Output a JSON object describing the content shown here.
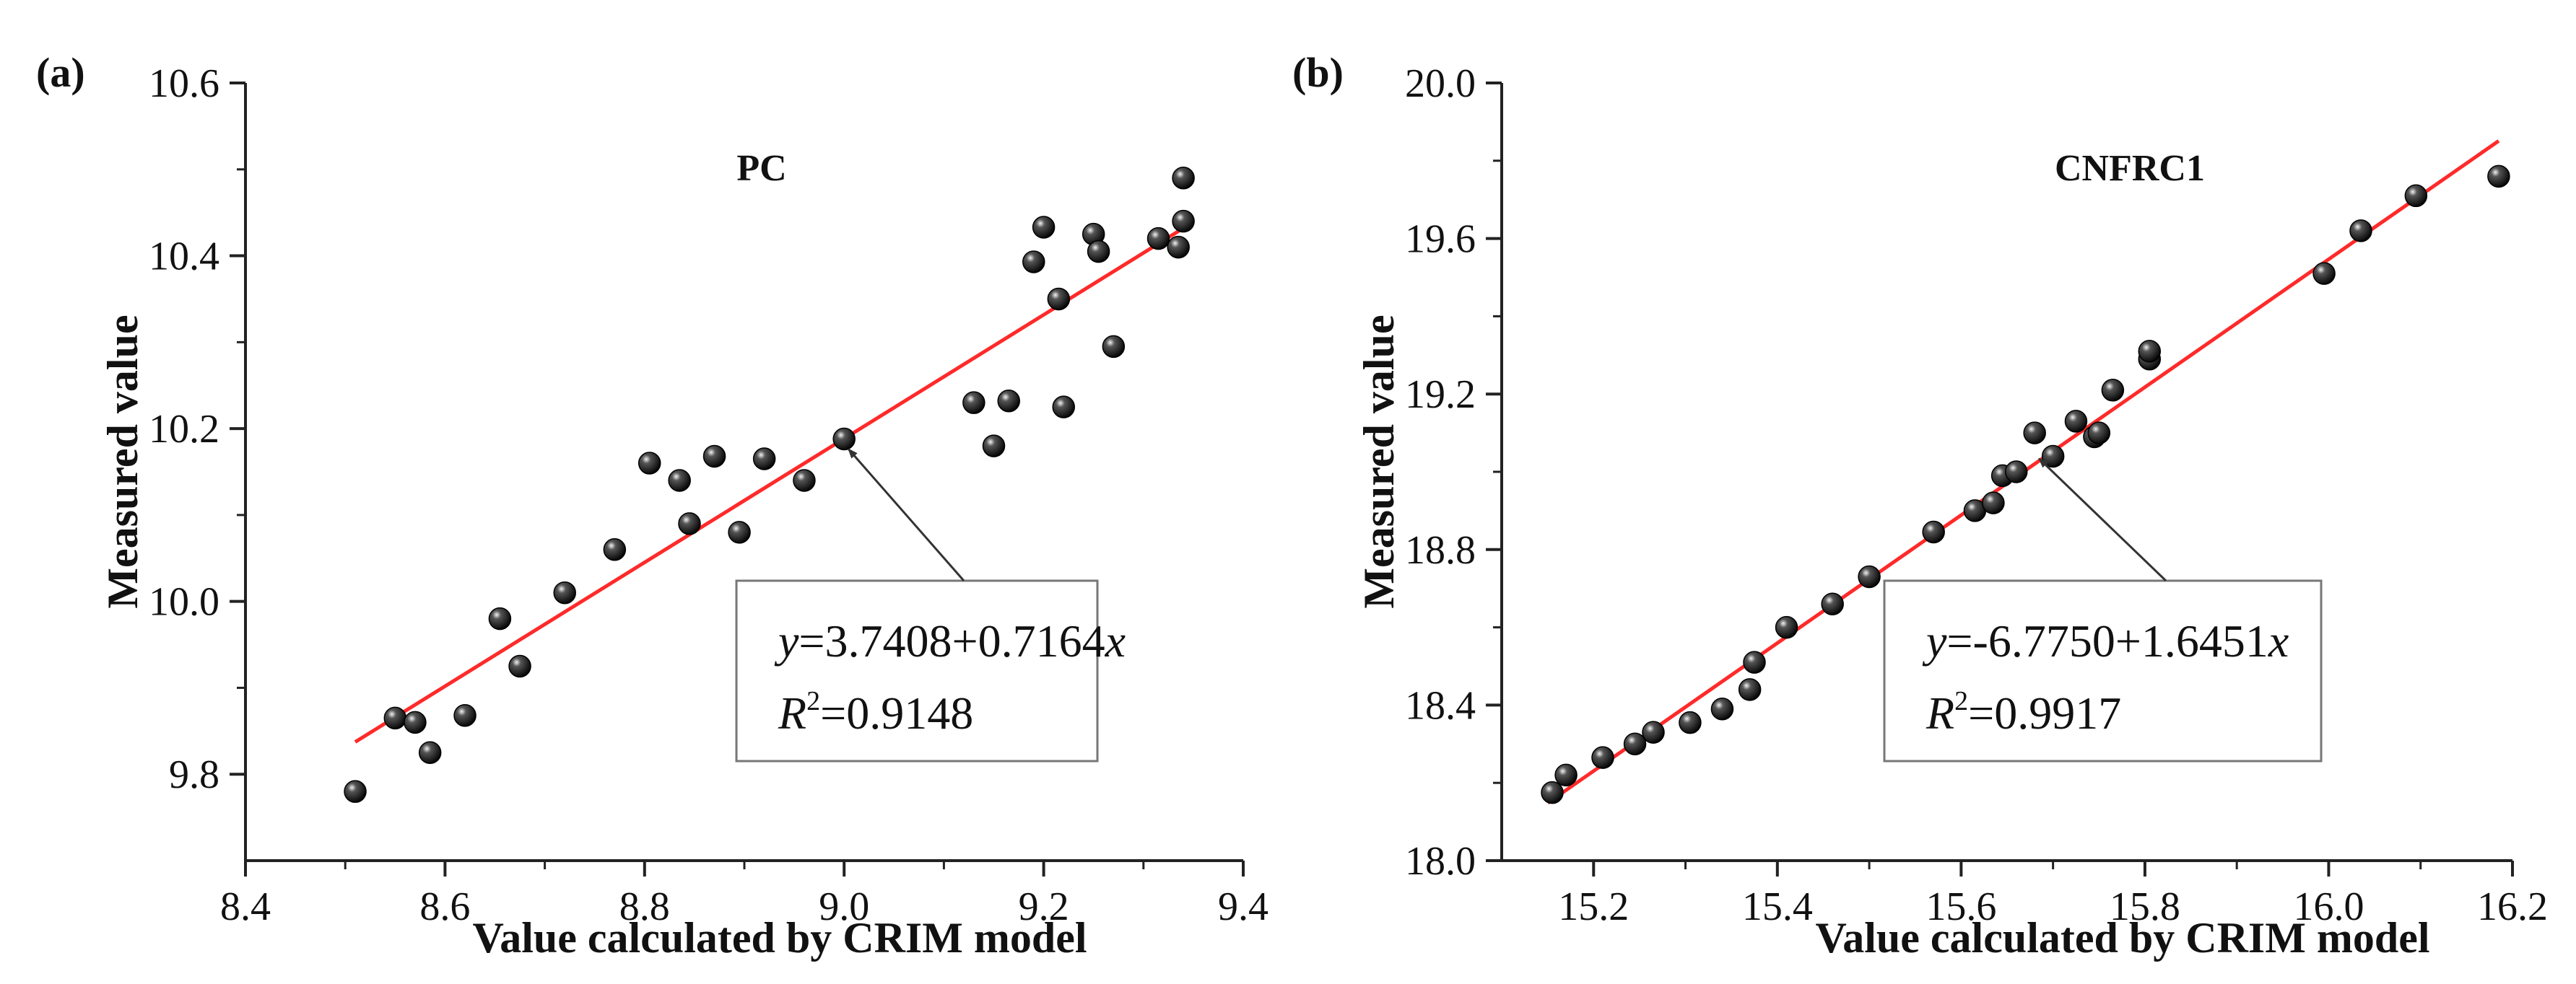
{
  "figure": {
    "panels": [
      "(a)",
      "(b)"
    ]
  },
  "chart_data": [
    {
      "type": "scatter",
      "panel_label": "(a)",
      "title": "PC",
      "xlabel": "Value calculated by CRIM model",
      "ylabel": "Measured value",
      "xlim": [
        8.4,
        9.4
      ],
      "ylim": [
        9.7,
        10.6
      ],
      "xticks": [
        "8.4",
        "8.6",
        "8.8",
        "9.0",
        "9.2",
        "9.4"
      ],
      "yticks": [
        "9.8",
        "10.0",
        "10.2",
        "10.4",
        "10.6"
      ],
      "colors": {
        "points": "#111111",
        "fit": "#ff2a2a",
        "axis": "#222222",
        "arrow": "#333333"
      },
      "points": [
        [
          8.51,
          9.78
        ],
        [
          8.55,
          9.865
        ],
        [
          8.57,
          9.86
        ],
        [
          8.585,
          9.825
        ],
        [
          8.62,
          9.868
        ],
        [
          8.655,
          9.98
        ],
        [
          8.675,
          9.925
        ],
        [
          8.72,
          10.01
        ],
        [
          8.77,
          10.06
        ],
        [
          8.805,
          10.16
        ],
        [
          8.835,
          10.14
        ],
        [
          8.845,
          10.09
        ],
        [
          8.87,
          10.168
        ],
        [
          8.895,
          10.08
        ],
        [
          8.92,
          10.165
        ],
        [
          8.96,
          10.14
        ],
        [
          9.0,
          10.188
        ],
        [
          9.13,
          10.23
        ],
        [
          9.15,
          10.18
        ],
        [
          9.165,
          10.232
        ],
        [
          9.19,
          10.393
        ],
        [
          9.2,
          10.433
        ],
        [
          9.215,
          10.35
        ],
        [
          9.22,
          10.225
        ],
        [
          9.25,
          10.425
        ],
        [
          9.255,
          10.405
        ],
        [
          9.27,
          10.295
        ],
        [
          9.315,
          10.42
        ],
        [
          9.335,
          10.41
        ],
        [
          9.34,
          10.44
        ],
        [
          9.34,
          10.49
        ]
      ],
      "fit": {
        "intercept": 3.7408,
        "slope": 0.7164,
        "x_range": [
          8.51,
          9.34
        ]
      },
      "annotation": {
        "y_symbol": "y",
        "eq_body": "=3.7408+0.7164",
        "x_symbol": "x",
        "r_symbol": "R",
        "r_exp": "2",
        "r_value": "=0.9148",
        "arrow_target": [
          9.0,
          10.188
        ]
      }
    },
    {
      "type": "scatter",
      "panel_label": "(b)",
      "title": "CNFRC1",
      "xlabel": "Value calculated by CRIM model",
      "ylabel": "Measured value",
      "xlim": [
        15.1,
        16.2
      ],
      "ylim": [
        18.0,
        20.0
      ],
      "xticks": [
        "15.2",
        "15.4",
        "15.6",
        "15.8",
        "16.0",
        "16.2"
      ],
      "yticks": [
        "18.0",
        "18.4",
        "18.8",
        "19.2",
        "19.6",
        "20.0"
      ],
      "colors": {
        "points": "#111111",
        "fit": "#ff2a2a",
        "axis": "#222222",
        "arrow": "#333333"
      },
      "points": [
        [
          15.155,
          18.175
        ],
        [
          15.17,
          18.22
        ],
        [
          15.21,
          18.265
        ],
        [
          15.245,
          18.3
        ],
        [
          15.265,
          18.33
        ],
        [
          15.305,
          18.355
        ],
        [
          15.34,
          18.39
        ],
        [
          15.37,
          18.44
        ],
        [
          15.375,
          18.51
        ],
        [
          15.41,
          18.6
        ],
        [
          15.46,
          18.66
        ],
        [
          15.5,
          18.73
        ],
        [
          15.57,
          18.845
        ],
        [
          15.615,
          18.9
        ],
        [
          15.635,
          18.92
        ],
        [
          15.645,
          18.99
        ],
        [
          15.66,
          19.0
        ],
        [
          15.68,
          19.1
        ],
        [
          15.7,
          19.04
        ],
        [
          15.725,
          19.13
        ],
        [
          15.745,
          19.09
        ],
        [
          15.75,
          19.1
        ],
        [
          15.765,
          19.21
        ],
        [
          15.805,
          19.29
        ],
        [
          15.805,
          19.31
        ],
        [
          15.995,
          19.51
        ],
        [
          16.035,
          19.62
        ],
        [
          16.095,
          19.71
        ],
        [
          16.185,
          19.76
        ]
      ],
      "fit": {
        "intercept": -6.775,
        "slope": 1.6451,
        "x_range": [
          15.15,
          16.185
        ]
      },
      "annotation": {
        "y_symbol": "y",
        "eq_body": "=-6.7750+1.6451",
        "x_symbol": "x",
        "r_symbol": "R",
        "r_exp": "2",
        "r_value": "=0.9917",
        "arrow_target": [
          15.68,
          19.06
        ]
      }
    }
  ]
}
